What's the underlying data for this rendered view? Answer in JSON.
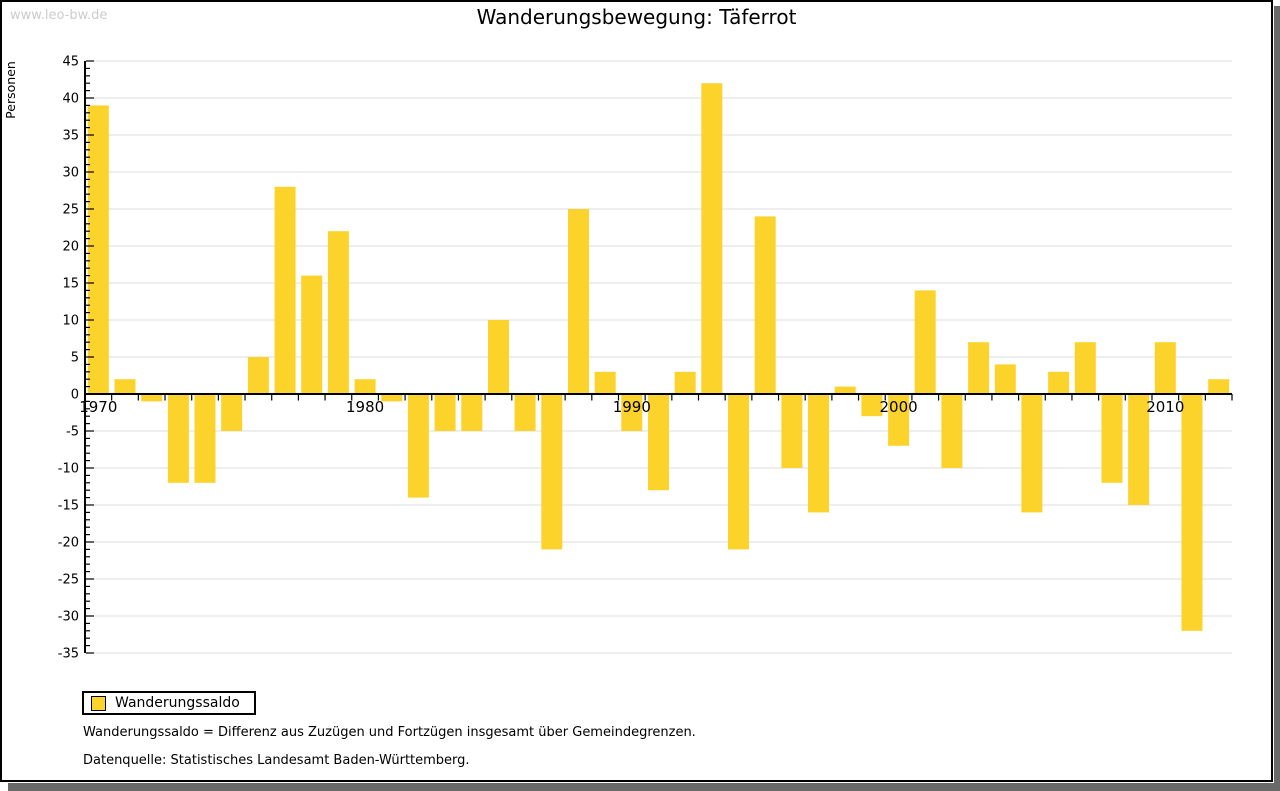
{
  "watermark": "www.leo-bw.de",
  "title": "Wanderungsbewegung: Täferrot",
  "legend": {
    "label": "Wanderungssaldo"
  },
  "footnotes": [
    "Wanderungssaldo = Differenz aus Zuzügen und Fortzügen insgesamt über Gemeindegrenzen.",
    "Datenquelle: Statistisches Landesamt Baden-Württemberg."
  ],
  "colors": {
    "bar": "#FCD32A",
    "grid": "#DEDEDE",
    "axis": "#000000",
    "watermark": "#CCCCCC",
    "frame_shadow": "#696969"
  },
  "chart_data": {
    "type": "bar",
    "title": "Wanderungsbewegung: Täferrot",
    "ylabel": "Personen",
    "series_name": "Wanderungssaldo",
    "years": [
      1970,
      1971,
      1972,
      1973,
      1974,
      1975,
      1976,
      1977,
      1978,
      1979,
      1980,
      1981,
      1982,
      1983,
      1984,
      1985,
      1986,
      1987,
      1988,
      1989,
      1990,
      1991,
      1992,
      1993,
      1994,
      1995,
      1996,
      1997,
      1998,
      1999,
      2000,
      2001,
      2002,
      2003,
      2004,
      2005,
      2006,
      2007,
      2008,
      2009,
      2010,
      2011,
      2012
    ],
    "values": [
      39,
      2,
      -1,
      -12,
      -12,
      -5,
      5,
      28,
      16,
      22,
      2,
      -1,
      -14,
      -5,
      -5,
      10,
      -5,
      -21,
      25,
      3,
      -5,
      -13,
      3,
      42,
      -21,
      24,
      -10,
      -16,
      1,
      -3,
      -7,
      14,
      -10,
      7,
      4,
      -16,
      3,
      7,
      -12,
      -15,
      7,
      -32,
      2
    ],
    "ylim": [
      -35,
      45
    ],
    "y_tick_step": 5,
    "y_minor_tick_step": 1,
    "x_major_labels": [
      1970,
      1980,
      1990,
      2000,
      2010
    ],
    "grid": true,
    "legend_position": "bottom-left"
  }
}
